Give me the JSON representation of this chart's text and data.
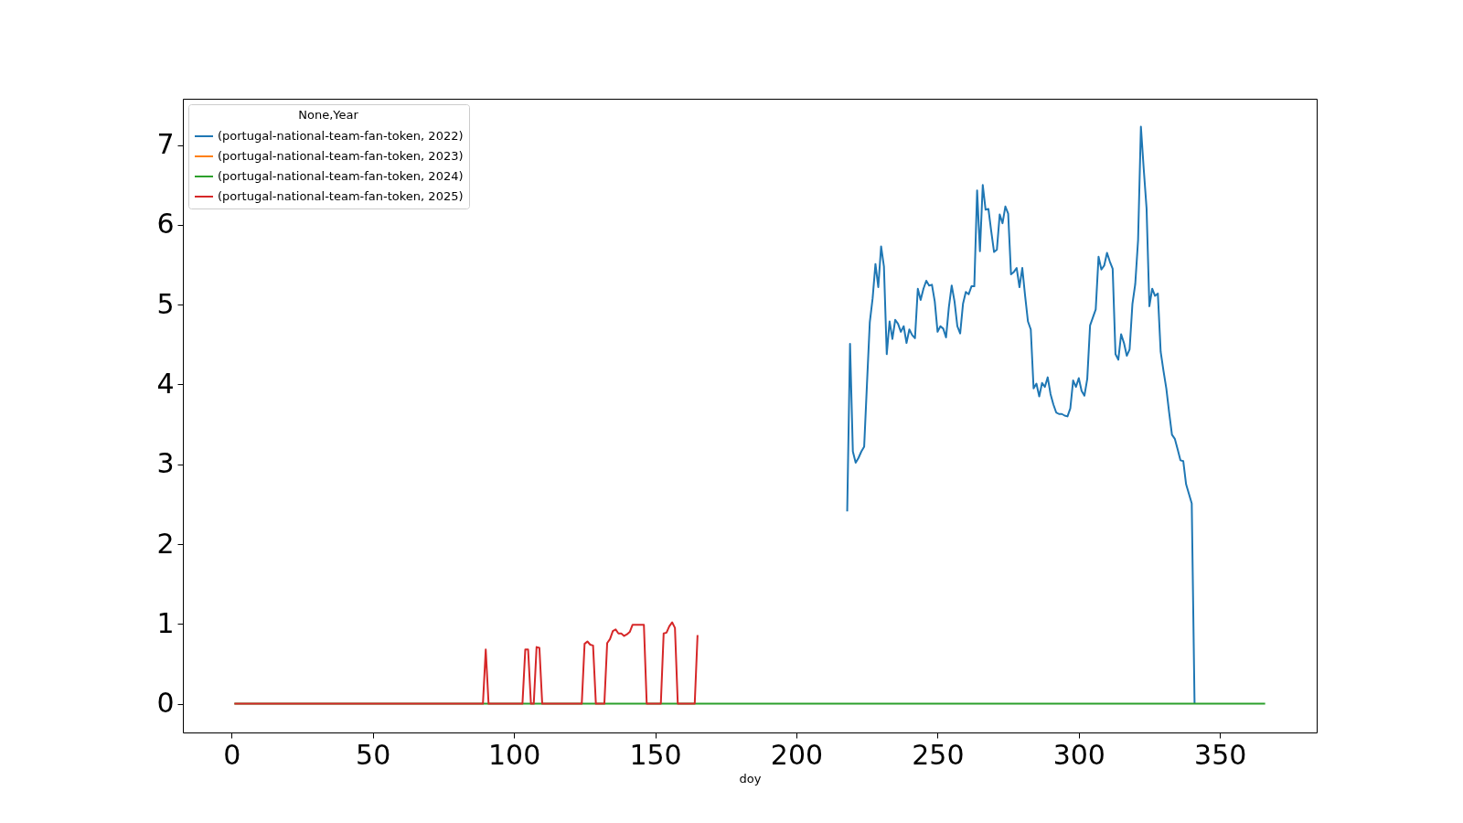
{
  "chart_data": {
    "type": "line",
    "xlabel": "doy",
    "legend_title": "None,Year",
    "legend": "top left",
    "grid": false,
    "line_style": "solid",
    "marker": "none",
    "xlim": [
      -17.25,
      384.25
    ],
    "xticks": [
      0,
      50,
      100,
      150,
      200,
      250,
      300,
      350
    ],
    "ylim": [
      -0.36,
      7.58
    ],
    "yticks": [
      0,
      1,
      2,
      3,
      4,
      5,
      6,
      7
    ],
    "series": [
      {
        "name": "(portugal-national-team-fan-token, 2022)",
        "color": "#1f77b4",
        "x": [
          218,
          219,
          220,
          221,
          222,
          223,
          224,
          225,
          226,
          227,
          228,
          229,
          230,
          231,
          232,
          233,
          234,
          235,
          236,
          237,
          238,
          239,
          240,
          241,
          242,
          243,
          244,
          245,
          246,
          247,
          248,
          249,
          250,
          251,
          252,
          253,
          254,
          255,
          256,
          257,
          258,
          259,
          260,
          261,
          262,
          263,
          264,
          265,
          266,
          267,
          268,
          269,
          270,
          271,
          272,
          273,
          274,
          275,
          276,
          277,
          278,
          279,
          280,
          281,
          282,
          283,
          284,
          285,
          286,
          287,
          288,
          289,
          290,
          291,
          292,
          293,
          294,
          295,
          296,
          297,
          298,
          299,
          300,
          301,
          302,
          303,
          304,
          305,
          306,
          307,
          308,
          309,
          310,
          311,
          312,
          313,
          314,
          315,
          316,
          317,
          318,
          319,
          320,
          321,
          322,
          323,
          324,
          325,
          326,
          327,
          328,
          329,
          330,
          331,
          332,
          333,
          334,
          335,
          336,
          337,
          338,
          339,
          340,
          341
        ],
        "values": [
          2.41,
          4.51,
          3.16,
          3.02,
          3.08,
          3.16,
          3.22,
          4.01,
          4.78,
          5.08,
          5.51,
          5.22,
          5.73,
          5.48,
          4.38,
          4.79,
          4.57,
          4.81,
          4.76,
          4.66,
          4.73,
          4.52,
          4.69,
          4.62,
          4.58,
          5.2,
          5.06,
          5.2,
          5.3,
          5.24,
          5.25,
          5.04,
          4.66,
          4.73,
          4.7,
          4.59,
          4.97,
          5.24,
          5.04,
          4.73,
          4.64,
          5.01,
          5.16,
          5.13,
          5.23,
          5.23,
          6.43,
          5.67,
          6.5,
          6.19,
          6.2,
          5.92,
          5.66,
          5.69,
          6.13,
          6.02,
          6.23,
          6.14,
          5.38,
          5.41,
          5.46,
          5.22,
          5.46,
          5.11,
          4.79,
          4.69,
          3.95,
          4.01,
          3.85,
          4.02,
          3.97,
          4.09,
          3.88,
          3.75,
          3.65,
          3.63,
          3.63,
          3.61,
          3.6,
          3.7,
          4.05,
          3.97,
          4.08,
          3.92,
          3.86,
          4.07,
          4.74,
          4.84,
          4.94,
          5.6,
          5.44,
          5.49,
          5.65,
          5.54,
          5.45,
          4.38,
          4.31,
          4.63,
          4.52,
          4.36,
          4.44,
          5.01,
          5.26,
          5.81,
          7.23,
          6.7,
          6.21,
          4.98,
          5.2,
          5.11,
          5.14,
          4.41,
          4.17,
          3.95,
          3.65,
          3.37,
          3.32,
          3.19,
          3.05,
          3.04,
          2.75,
          2.63,
          2.51,
          0
        ]
      },
      {
        "name": "(portugal-national-team-fan-token, 2023)",
        "color": "#ff7f0e"
      },
      {
        "name": "(portugal-national-team-fan-token, 2024)",
        "color": "#2ca02c",
        "x": [
          1,
          366
        ],
        "values": [
          0,
          0
        ]
      },
      {
        "name": "(portugal-national-team-fan-token, 2025)",
        "color": "#d62728",
        "x": [
          1,
          89,
          90,
          91,
          103,
          104,
          105,
          106,
          107,
          108,
          109,
          110,
          124,
          125,
          126,
          127,
          128,
          129,
          132,
          133,
          134,
          135,
          136,
          137,
          138,
          139,
          140,
          141,
          142,
          143,
          144,
          145,
          146,
          147,
          152,
          153,
          154,
          155,
          156,
          157,
          158,
          164,
          165
        ],
        "values": [
          0,
          0,
          0.68,
          0,
          0,
          0.68,
          0.68,
          0,
          0,
          0.71,
          0.7,
          0,
          0,
          0.75,
          0.78,
          0.74,
          0.73,
          0,
          0,
          0.76,
          0.81,
          0.91,
          0.93,
          0.88,
          0.88,
          0.85,
          0.87,
          0.9,
          0.99,
          0.99,
          0.99,
          0.99,
          0.99,
          0,
          0,
          0.88,
          0.89,
          0.97,
          1.02,
          0.95,
          0,
          0,
          0.86
        ]
      }
    ]
  }
}
